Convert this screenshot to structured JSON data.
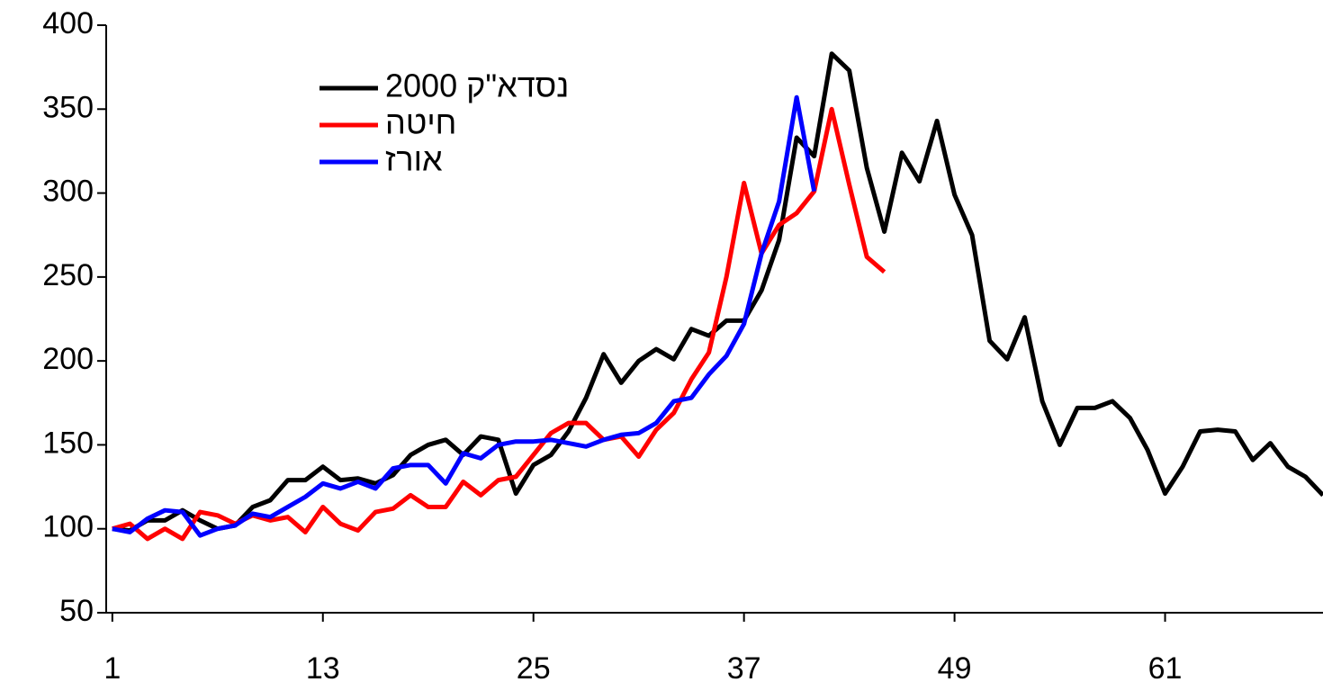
{
  "chart_data": {
    "type": "line",
    "x": [
      1,
      2,
      3,
      4,
      5,
      6,
      7,
      8,
      9,
      10,
      11,
      12,
      13,
      14,
      15,
      16,
      17,
      18,
      19,
      20,
      21,
      22,
      23,
      24,
      25,
      26,
      27,
      28,
      29,
      30,
      31,
      32,
      33,
      34,
      35,
      36,
      37,
      38,
      39,
      40,
      41,
      42,
      43,
      44,
      45,
      46,
      47,
      48,
      49,
      50,
      51,
      52,
      53,
      54,
      55,
      56,
      57,
      58,
      59,
      60,
      61,
      62,
      63,
      64,
      65,
      66,
      67,
      68,
      69,
      70
    ],
    "series": [
      {
        "name": "נסדא\"ק 2000",
        "color": "#000000",
        "values": [
          100,
          99,
          105,
          105,
          111,
          105,
          100,
          102,
          113,
          117,
          129,
          129,
          137,
          129,
          130,
          127,
          132,
          144,
          150,
          153,
          144,
          155,
          153,
          121,
          138,
          144,
          158,
          178,
          204,
          187,
          200,
          207,
          201,
          219,
          215,
          224,
          224,
          242,
          272,
          333,
          322,
          383,
          373,
          315,
          277,
          324,
          307,
          343,
          299,
          275,
          212,
          201,
          226,
          176,
          150,
          172,
          172,
          176,
          166,
          147,
          121,
          137,
          158,
          159,
          158,
          141,
          151,
          137,
          131,
          120
        ]
      },
      {
        "name": "חיטה",
        "color": "#ff0000",
        "values": [
          100,
          103,
          94,
          100,
          94,
          110,
          108,
          103,
          108,
          105,
          107,
          98,
          113,
          103,
          99,
          110,
          112,
          120,
          113,
          113,
          128,
          120,
          129,
          131,
          144,
          157,
          163,
          163,
          153,
          155,
          143,
          159,
          169,
          189,
          205,
          250,
          306,
          264,
          281,
          288,
          301,
          350,
          305,
          262,
          253,
          null,
          null,
          null,
          null,
          null,
          null,
          null,
          null,
          null,
          null,
          null,
          null,
          null,
          null,
          null,
          null,
          null,
          null,
          null,
          null,
          null,
          null,
          null,
          null,
          null
        ]
      },
      {
        "name": "אורז",
        "color": "#0000ff",
        "values": [
          100,
          98,
          106,
          111,
          110,
          96,
          100,
          102,
          109,
          107,
          113,
          119,
          127,
          124,
          128,
          124,
          136,
          138,
          138,
          127,
          145,
          142,
          150,
          152,
          152,
          153,
          151,
          149,
          153,
          156,
          157,
          163,
          176,
          178,
          192,
          203,
          222,
          264,
          295,
          357,
          301,
          null,
          null,
          null,
          null,
          null,
          null,
          null,
          null,
          null,
          null,
          null,
          null,
          null,
          null,
          null,
          null,
          null,
          null,
          null,
          null,
          null,
          null,
          null,
          null,
          null,
          null,
          null,
          null,
          null
        ]
      }
    ],
    "xlim": [
      0.65,
      70
    ],
    "xticks": [
      1,
      13,
      25,
      37,
      49,
      61
    ],
    "ylim": [
      50,
      400
    ],
    "yticks": [
      50,
      100,
      150,
      200,
      250,
      300,
      350,
      400
    ]
  }
}
